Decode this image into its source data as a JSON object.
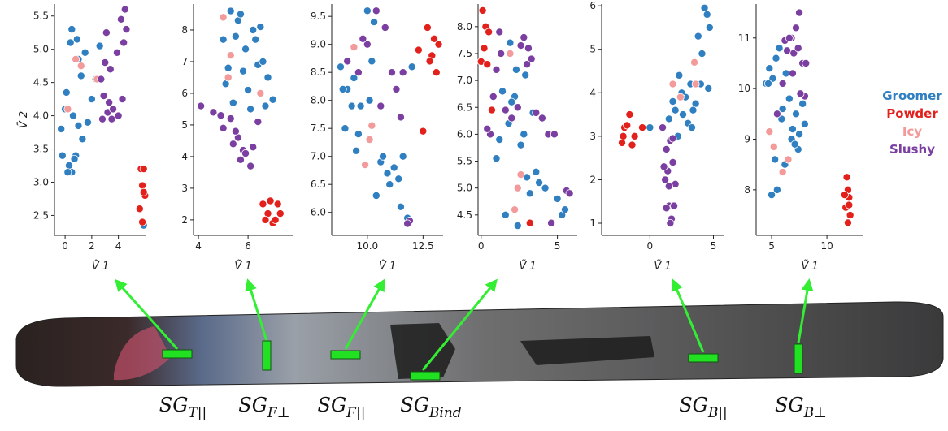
{
  "legend": {
    "entries": [
      {
        "name": "Groomer",
        "color": "#2f7fc1"
      },
      {
        "name": "Powder",
        "color": "#e3211c"
      },
      {
        "name": "Icy",
        "color": "#f39a9a"
      },
      {
        "name": "Slushy",
        "color": "#7a3fa1"
      }
    ]
  },
  "chart_data": [
    {
      "type": "scatter",
      "xlabel": "Ṽ 1",
      "ylabel": "Ṽ 2",
      "xlim": [
        -0.8,
        6.1
      ],
      "ylim": [
        2.2,
        5.68
      ],
      "xticks": [
        0,
        2,
        4
      ],
      "yticks": [
        2.5,
        {
          "value": 3,
          "label": "3.0"
        },
        3.5,
        {
          "value": 4,
          "label": "4.0"
        },
        4.5,
        {
          "value": 5,
          "label": "5.0"
        },
        5.5
      ],
      "series": [
        {
          "x": [
            0.1,
            0.3,
            0.5,
            0.8,
            1.0,
            1.3,
            1.7,
            2.0,
            2.3,
            -0.3,
            0.0,
            0.4,
            0.9,
            1.2,
            0.6,
            -0.2,
            0.2,
            0.7,
            1.5,
            2.6,
            0.5,
            1.0,
            5.9
          ],
          "values": [
            4.35,
            3.25,
            3.15,
            3.4,
            3.85,
            3.65,
            3.9,
            4.25,
            4.55,
            3.8,
            4.1,
            5.1,
            5.15,
            4.6,
            4.0,
            3.4,
            3.15,
            3.35,
            4.95,
            5.05,
            5.3,
            4.85,
            2.35
          ]
        },
        {
          "x": [
            5.7,
            5.9,
            5.8,
            6.0,
            5.6,
            5.9,
            5.8
          ],
          "values": [
            3.2,
            3.2,
            2.95,
            2.8,
            2.6,
            2.85,
            2.4
          ]
        },
        {
          "x": [
            0.8,
            0.2,
            2.4,
            1.2
          ],
          "values": [
            4.85,
            4.1,
            4.55,
            4.75
          ]
        },
        {
          "x": [
            2.8,
            3.2,
            3.6,
            4.0,
            4.3,
            4.5,
            4.6,
            3.0,
            2.9,
            3.4,
            3.9,
            4.2,
            3.1,
            2.7,
            3.5,
            3.3,
            4.4
          ],
          "values": [
            3.95,
            4.05,
            4.1,
            4.0,
            4.25,
            5.6,
            5.3,
            4.8,
            4.3,
            4.7,
            4.95,
            5.45,
            5.25,
            4.55,
            3.95,
            4.2,
            5.1
          ]
        }
      ]
    },
    {
      "type": "scatter",
      "xlabel": "Ṽ 1",
      "xlim": [
        3.8,
        7.8
      ],
      "ylim": [
        1.51,
        8.82
      ],
      "xticks": [
        4,
        6
      ],
      "yticks": [
        2,
        3,
        4,
        5,
        6,
        7,
        8
      ],
      "series": [
        {
          "x": [
            5.0,
            5.3,
            5.6,
            5.9,
            6.2,
            6.5,
            6.8,
            5.2,
            5.5,
            5.8,
            6.1,
            6.4,
            6.7,
            7.0,
            5.1,
            5.7,
            6.3,
            6.0,
            5.4,
            6.6
          ],
          "values": [
            7.7,
            8.6,
            8.3,
            7.4,
            8.0,
            8.1,
            6.5,
            6.8,
            7.8,
            6.7,
            5.5,
            6.9,
            5.6,
            5.8,
            6.3,
            8.5,
            7.7,
            6.1,
            5.7,
            7.0
          ]
        },
        {
          "x": [
            6.6,
            6.8,
            7.0,
            7.2,
            6.9,
            7.3,
            6.7,
            7.1
          ],
          "values": [
            2.5,
            2.2,
            1.9,
            2.5,
            2.6,
            2.2,
            2.0,
            2.0
          ]
        },
        {
          "x": [
            5.0,
            5.3,
            5.2,
            6.5
          ],
          "values": [
            8.4,
            7.2,
            6.5,
            6.0
          ]
        },
        {
          "x": [
            4.1,
            4.6,
            5.0,
            5.4,
            5.8,
            6.1,
            5.6,
            5.3,
            5.9,
            6.2,
            6.4,
            5.5,
            4.9,
            5.7
          ],
          "values": [
            5.6,
            5.4,
            4.9,
            4.4,
            4.2,
            3.7,
            4.6,
            5.2,
            4.1,
            4.3,
            5.1,
            4.8,
            5.3,
            3.9
          ]
        }
      ]
    },
    {
      "type": "scatter",
      "xlabel": "Ṽ 1",
      "xlim": [
        8.4,
        13.4
      ],
      "ylim": [
        5.59,
        9.72
      ],
      "xticks": [
        {
          "value": 10,
          "label": "10.0"
        },
        12.5
      ],
      "yticks": [
        {
          "value": 6,
          "label": "6.0"
        },
        6.5,
        {
          "value": 7,
          "label": "7.0"
        },
        7.5,
        {
          "value": 8,
          "label": "8.0"
        },
        8.5,
        {
          "value": 9,
          "label": "9.0"
        },
        9.5
      ],
      "series": [
        {
          "x": [
            8.8,
            9.1,
            9.4,
            9.7,
            10.0,
            10.3,
            10.6,
            10.9,
            11.2,
            11.5,
            11.8,
            9.0,
            9.6,
            10.4,
            11.0,
            11.6,
            8.9,
            9.3,
            10.1,
            10.7,
            11.4,
            9.5,
            10.2,
            12.0
          ],
          "values": [
            8.6,
            8.2,
            8.4,
            7.9,
            9.6,
            9.4,
            6.9,
            6.7,
            6.8,
            6.1,
            5.9,
            7.5,
            7.4,
            6.3,
            6.5,
            7.0,
            8.2,
            7.9,
            8.0,
            7.0,
            6.6,
            7.1,
            8.7,
            8.6
          ]
        },
        {
          "x": [
            12.3,
            12.7,
            13.0,
            13.2,
            12.9,
            13.1,
            12.8,
            12.5
          ],
          "values": [
            8.9,
            9.3,
            9.1,
            9.0,
            8.8,
            8.5,
            8.7,
            7.45
          ]
        },
        {
          "x": [
            9.4,
            10.2,
            9.9,
            10.1
          ],
          "values": [
            8.95,
            7.55,
            6.85,
            7.3
          ]
        },
        {
          "x": [
            9.1,
            9.6,
            10.0,
            10.4,
            10.8,
            11.1,
            11.3,
            11.6,
            11.9,
            10.6,
            9.8,
            11.5,
            11.8
          ],
          "values": [
            8.7,
            8.5,
            9.0,
            9.6,
            9.3,
            8.5,
            8.2,
            8.5,
            5.85,
            7.9,
            9.1,
            7.7,
            5.8
          ]
        }
      ]
    },
    {
      "type": "scatter",
      "xlabel": "Ṽ 1",
      "xlim": [
        -0.2,
        6.3
      ],
      "ylim": [
        4.12,
        8.42
      ],
      "xticks": [
        0,
        5
      ],
      "yticks": [
        4.5,
        {
          "value": 5,
          "label": "5.0"
        },
        5.5,
        {
          "value": 6,
          "label": "6.0"
        },
        6.5,
        {
          "value": 7,
          "label": "7.0"
        },
        7.5,
        {
          "value": 8,
          "label": "8.0"
        }
      ],
      "series": [
        {
          "x": [
            1.0,
            1.4,
            1.8,
            2.2,
            2.6,
            3.0,
            3.4,
            3.8,
            4.2,
            1.2,
            1.6,
            2.0,
            2.4,
            2.8,
            3.2,
            3.6,
            5.0,
            5.3,
            5.5,
            1.9,
            2.3,
            2.9
          ],
          "values": [
            5.55,
            6.8,
            6.2,
            6.7,
            5.8,
            5.2,
            6.4,
            5.1,
            5.0,
            5.9,
            4.5,
            6.6,
            4.3,
            6.0,
            4.9,
            5.3,
            4.8,
            4.5,
            4.6,
            7.7,
            7.2,
            7.1
          ]
        },
        {
          "x": [
            0.1,
            0.3,
            0.5,
            0.2,
            0.0,
            0.4,
            0.7,
            3.2
          ],
          "values": [
            8.3,
            8.0,
            7.9,
            7.6,
            7.35,
            7.3,
            6.45,
            4.35
          ]
        },
        {
          "x": [
            1.9,
            2.6,
            2.4,
            2.2
          ],
          "values": [
            7.5,
            5.25,
            5.0,
            4.6
          ]
        },
        {
          "x": [
            0.6,
            1.0,
            1.3,
            1.6,
            2.0,
            2.4,
            2.8,
            3.1,
            3.3,
            3.6,
            4.0,
            4.4,
            4.8,
            5.6,
            5.8,
            0.4,
            0.8,
            1.2,
            2.6,
            3.0,
            4.6
          ],
          "values": [
            6.0,
            7.2,
            7.5,
            6.45,
            6.3,
            6.5,
            7.8,
            7.6,
            7.4,
            6.4,
            6.3,
            6.0,
            6.0,
            4.95,
            4.9,
            6.1,
            6.7,
            7.9,
            7.65,
            7.3,
            4.35
          ]
        }
      ]
    },
    {
      "type": "scatter",
      "xlabel": "Ṽ 1",
      "xlim": [
        -3.8,
        5.8
      ],
      "ylim": [
        0.72,
        6.04
      ],
      "xticks": [
        0,
        5
      ],
      "yticks": [
        1,
        2,
        3,
        4,
        5,
        6
      ],
      "series": [
        {
          "x": [
            0.0,
            1.5,
            1.8,
            2.0,
            2.3,
            2.6,
            3.0,
            3.3,
            3.6,
            4.0,
            4.3,
            4.5,
            4.7,
            3.8,
            3.5,
            2.8,
            2.2,
            4.1,
            4.6,
            3.2,
            2.5,
            3.4
          ],
          "values": [
            3.2,
            3.4,
            3.8,
            3.6,
            4.4,
            3.5,
            3.3,
            3.2,
            3.75,
            4.2,
            5.95,
            5.8,
            5.5,
            5.3,
            4.7,
            3.9,
            3.0,
            4.9,
            4.1,
            4.2,
            4.0,
            3.6
          ]
        },
        {
          "x": [
            -2.0,
            -1.6,
            -1.2,
            -0.6,
            -2.2,
            -1.8,
            -1.4,
            -2.1
          ],
          "values": [
            3.2,
            3.5,
            3.0,
            3.2,
            2.85,
            3.25,
            2.8,
            3.0
          ]
        },
        {
          "x": [
            1.8,
            3.5,
            3.6,
            2.4
          ],
          "values": [
            4.2,
            4.7,
            4.2,
            3.9
          ]
        },
        {
          "x": [
            1.0,
            1.3,
            1.6,
            1.8,
            2.0,
            1.5,
            1.2,
            1.4,
            1.7,
            1.9,
            1.6,
            1.3,
            1.5,
            1.8,
            1.1
          ],
          "values": [
            3.2,
            2.7,
            2.9,
            2.4,
            1.9,
            1.4,
            2.0,
            2.2,
            1.1,
            1.4,
            1.0,
            1.35,
            1.85,
            2.95,
            2.3
          ]
        }
      ]
    },
    {
      "type": "scatter",
      "xlabel": "Ṽ 1",
      "xlim": [
        3.6,
        13.3
      ],
      "ylim": [
        7.1,
        11.67
      ],
      "xticks": [
        5,
        10
      ],
      "yticks": [
        8,
        9,
        10,
        11
      ],
      "series": [
        {
          "x": [
            4.5,
            4.8,
            5.1,
            5.4,
            5.7,
            6.0,
            6.3,
            6.6,
            6.9,
            7.2,
            7.5,
            7.8,
            5.0,
            5.5,
            6.2,
            6.8,
            7.4,
            5.3,
            5.9,
            4.7,
            8.0,
            7.1
          ],
          "values": [
            10.1,
            10.4,
            10.2,
            10.6,
            10.8,
            9.6,
            10.3,
            9.8,
            9.2,
            9.5,
            9.1,
            9.7,
            7.9,
            8.0,
            8.5,
            9.0,
            8.8,
            8.6,
            9.4,
            10.1,
            9.3,
            8.9
          ]
        },
        {
          "x": [
            11.8,
            11.9,
            12.0,
            11.7,
            12.1,
            11.9,
            11.6,
            12.0
          ],
          "values": [
            8.25,
            8.0,
            7.85,
            7.65,
            7.5,
            7.35,
            7.9,
            7.7
          ]
        },
        {
          "x": [
            4.8,
            5.2,
            6.0,
            6.5
          ],
          "values": [
            9.15,
            8.85,
            8.35,
            8.6
          ]
        },
        {
          "x": [
            5.5,
            6.0,
            6.4,
            6.8,
            7.2,
            7.5,
            7.8,
            8.1,
            6.2,
            6.6,
            7.0,
            7.4,
            8.0,
            6.9,
            7.6
          ],
          "values": [
            9.5,
            10.1,
            10.75,
            11.0,
            11.2,
            11.5,
            10.5,
            10.5,
            10.95,
            11.0,
            10.7,
            10.8,
            9.85,
            10.3,
            9.9
          ]
        }
      ]
    }
  ],
  "ski": {
    "labels": [
      {
        "main": "SG",
        "sub": "T||"
      },
      {
        "main": "SG",
        "sub": "F⊥"
      },
      {
        "main": "SG",
        "sub": "F||"
      },
      {
        "main": "SG",
        "sub": "Bind"
      },
      {
        "main": "SG",
        "sub": "B||"
      },
      {
        "main": "SG",
        "sub": "B⊥"
      }
    ]
  }
}
